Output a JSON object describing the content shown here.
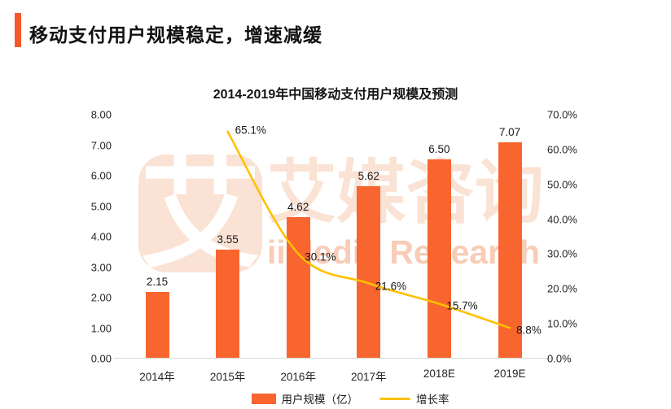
{
  "header": {
    "title": "移动支付用户规模稳定，增速减缓"
  },
  "watermark": {
    "logo_char": "艾",
    "brand_cn": "艾媒咨询",
    "brand_en": "iiMedia Research"
  },
  "colors": {
    "accent": "#F4582B",
    "bar": "#F8652F",
    "line": "#FFC000",
    "watermark_light": "#FAE2D4",
    "watermark_latin": "#F8CCB6",
    "axis_line": "#D6D6D6",
    "text_dark": "#1a1a1a"
  },
  "chart_data": {
    "type": "bar",
    "title": "2014-2019年中国移动支付用户规模及预测",
    "categories": [
      "2014年",
      "2015年",
      "2016年",
      "2017年",
      "2018E",
      "2019E"
    ],
    "series": [
      {
        "name": "用户规模（亿）",
        "type": "bar",
        "axis": "left",
        "values": [
          2.15,
          3.55,
          4.62,
          5.62,
          6.5,
          7.07
        ],
        "labels": [
          "2.15",
          "3.55",
          "4.62",
          "5.62",
          "6.50",
          "7.07"
        ],
        "color": "#F8652F"
      },
      {
        "name": "增长率",
        "type": "line",
        "axis": "right",
        "values": [
          null,
          65.1,
          30.1,
          21.6,
          15.7,
          8.8
        ],
        "labels": [
          null,
          "65.1%",
          "30.1%",
          "21.6%",
          "15.7%",
          "8.8%"
        ],
        "color": "#FFC000"
      }
    ],
    "left_axis": {
      "min": 0,
      "max": 8,
      "ticks": [
        "8.00",
        "7.00",
        "6.00",
        "5.00",
        "4.00",
        "3.00",
        "2.00",
        "1.00",
        "0.00"
      ]
    },
    "right_axis": {
      "min": 0,
      "max": 70,
      "ticks": [
        "70.0%",
        "60.0%",
        "50.0%",
        "40.0%",
        "30.0%",
        "20.0%",
        "10.0%",
        "0.0%"
      ]
    },
    "grid": "off",
    "legend_position": "bottom",
    "legend": [
      {
        "label": "用户规模（亿）",
        "swatch": "bar"
      },
      {
        "label": "增长率",
        "swatch": "line"
      }
    ]
  }
}
